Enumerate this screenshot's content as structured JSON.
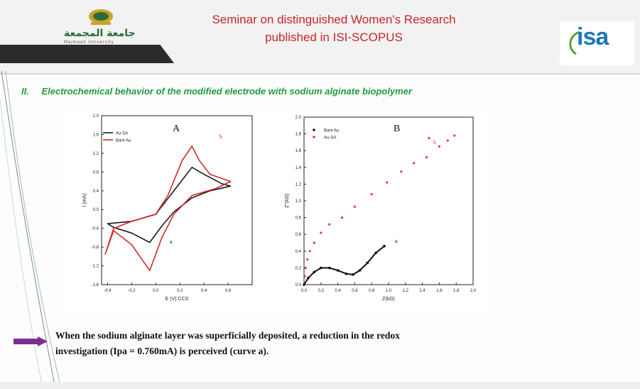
{
  "header": {
    "title_line1": "Seminar on distinguished Women's Research",
    "title_line2": "published in ISI-SCOPUS",
    "left_logo_arabic": "جامعة المجمعة",
    "left_logo_english": "Majmaah University",
    "right_logo_text": "isa"
  },
  "section": {
    "number": "II.",
    "title": "Electrochemical behavior of the modified electrode with sodium alginate biopolymer"
  },
  "chart_data": [
    {
      "type": "line",
      "panel_label": "A",
      "xlabel": "E (V) CCS",
      "ylabel": "I (mA)",
      "xlim": [
        -0.45,
        0.8
      ],
      "ylim": [
        -1.6,
        2.0
      ],
      "x_ticks": [
        "-0.4",
        "-0.2",
        "0.0",
        "0.2",
        "0.4",
        "0.6"
      ],
      "y_ticks": [
        "2.0",
        "1.6",
        "1.2",
        "0.8",
        "0.4",
        "0.0",
        "-0.4",
        "-0.8",
        "-1.2",
        "-1.6"
      ],
      "legend": [
        "Au-SA",
        "Bare Au"
      ],
      "legend_position": "top-left",
      "annotations": [
        "a",
        "b"
      ],
      "series": [
        {
          "name": "Au-SA",
          "color": "#1a1a1a",
          "points": [
            [
              -0.4,
              -0.3
            ],
            [
              -0.2,
              -0.25
            ],
            [
              0.0,
              -0.1
            ],
            [
              0.15,
              0.4
            ],
            [
              0.3,
              0.9
            ],
            [
              0.4,
              0.75
            ],
            [
              0.55,
              0.55
            ],
            [
              0.62,
              0.5
            ],
            [
              0.45,
              0.4
            ],
            [
              0.3,
              0.25
            ],
            [
              0.15,
              -0.05
            ],
            [
              0.05,
              -0.35
            ],
            [
              -0.05,
              -0.7
            ],
            [
              -0.2,
              -0.5
            ],
            [
              -0.35,
              -0.38
            ],
            [
              -0.4,
              -0.3
            ]
          ]
        },
        {
          "name": "Bare Au",
          "color": "#cf2a2a",
          "points": [
            [
              -0.42,
              -0.95
            ],
            [
              -0.35,
              -0.4
            ],
            [
              -0.2,
              -0.25
            ],
            [
              0.0,
              -0.1
            ],
            [
              0.1,
              0.3
            ],
            [
              0.22,
              1.05
            ],
            [
              0.3,
              1.35
            ],
            [
              0.36,
              1.05
            ],
            [
              0.45,
              0.75
            ],
            [
              0.62,
              0.6
            ],
            [
              0.5,
              0.45
            ],
            [
              0.3,
              0.3
            ],
            [
              0.15,
              -0.1
            ],
            [
              0.05,
              -0.6
            ],
            [
              -0.05,
              -1.3
            ],
            [
              -0.2,
              -0.75
            ],
            [
              -0.35,
              -0.45
            ],
            [
              -0.42,
              -0.95
            ]
          ]
        }
      ]
    },
    {
      "type": "scatter",
      "panel_label": "B",
      "xlabel": "Z(kΩ)",
      "ylabel": "Z''(kΩ)",
      "xlim": [
        0,
        2.0
      ],
      "ylim": [
        0,
        2.0
      ],
      "x_ticks": [
        "0.0",
        "0.2",
        "0.4",
        "0.6",
        "0.8",
        "1.0",
        "1.2",
        "1.4",
        "1.6",
        "1.8",
        "2.0"
      ],
      "y_ticks": [
        "0.0",
        "0.2",
        "0.4",
        "0.6",
        "0.8",
        "1.0",
        "1.2",
        "1.4",
        "1.6",
        "1.8",
        "2.0"
      ],
      "legend": [
        "Bare Au",
        "Au-SA"
      ],
      "legend_position": "top-left",
      "annotations": [
        "a",
        "b"
      ],
      "series": [
        {
          "name": "Bare Au",
          "color": "#111111",
          "points": [
            [
              0.0,
              0.0
            ],
            [
              0.05,
              0.08
            ],
            [
              0.12,
              0.15
            ],
            [
              0.2,
              0.2
            ],
            [
              0.3,
              0.2
            ],
            [
              0.4,
              0.17
            ],
            [
              0.5,
              0.13
            ],
            [
              0.58,
              0.12
            ],
            [
              0.66,
              0.17
            ],
            [
              0.75,
              0.26
            ],
            [
              0.85,
              0.38
            ],
            [
              0.95,
              0.46
            ]
          ]
        },
        {
          "name": "Au-SA",
          "color": "#e23b3b",
          "points": [
            [
              0.01,
              0.1
            ],
            [
              0.02,
              0.2
            ],
            [
              0.04,
              0.3
            ],
            [
              0.07,
              0.4
            ],
            [
              0.12,
              0.5
            ],
            [
              0.2,
              0.62
            ],
            [
              0.3,
              0.72
            ],
            [
              0.45,
              0.8
            ],
            [
              0.6,
              0.93
            ],
            [
              0.8,
              1.08
            ],
            [
              0.98,
              1.22
            ],
            [
              1.15,
              1.35
            ],
            [
              1.3,
              1.45
            ],
            [
              1.45,
              1.52
            ],
            [
              1.48,
              1.75
            ],
            [
              1.6,
              1.65
            ],
            [
              1.7,
              1.72
            ],
            [
              1.78,
              1.78
            ]
          ]
        }
      ]
    }
  ],
  "body": {
    "line1": "When the sodium alginate layer was superficially deposited, a reduction in the redox",
    "line2": "investigation (Ipa = 0.760mA) is perceived (curve a)."
  },
  "colors": {
    "title": "#c8252b",
    "section": "#1f9a3c",
    "arrow": "#7b2f8f"
  }
}
